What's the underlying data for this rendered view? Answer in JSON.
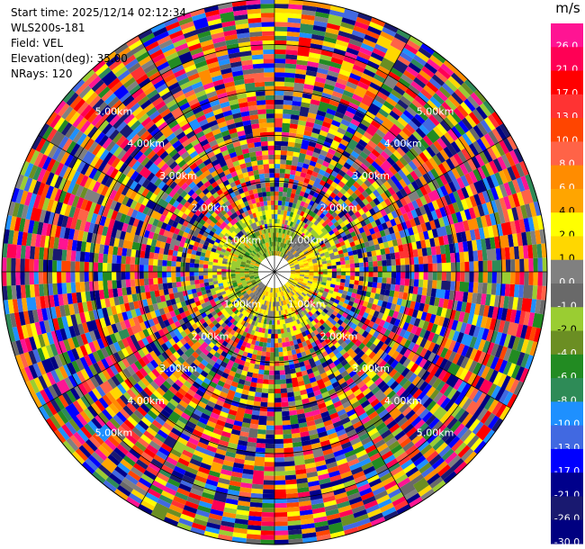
{
  "header": {
    "start_time": "Start time: 2025/12/14 02:12:34",
    "instrument": "WLS200s-181",
    "field": "Field: VEL",
    "elevation": "Elevation(deg): 35.00",
    "nrays": "NRays: 120"
  },
  "colorbar": {
    "unit": "m/s",
    "ticks": [
      "26.0",
      "21.0",
      "17.0",
      "13.0",
      "10.0",
      "8.0",
      "6.0",
      "4.0",
      "2.0",
      "1.0",
      "0.0",
      "-1.0",
      "-2.0",
      "-4.0",
      "-6.0",
      "-8.0",
      "-10.0",
      "-13.0",
      "-17.0",
      "-21.0",
      "-26.0",
      "-30.0"
    ],
    "colors": [
      "#ff1493",
      "#ff0055",
      "#ff0000",
      "#ff3333",
      "#ff4500",
      "#ff6347",
      "#ff8c00",
      "#ffa500",
      "#ffff00",
      "#ffd700",
      "#808080",
      "#696969",
      "#9acd32",
      "#6b8e23",
      "#228b22",
      "#2e8b57",
      "#1e90ff",
      "#4169e1",
      "#0000ff",
      "#00008b",
      "#191970",
      "#000080"
    ]
  },
  "chart_data": {
    "type": "ppi",
    "field": "VEL",
    "units": "m/s",
    "nrays": 120,
    "elevation_deg": 35.0,
    "range_rings": [
      {
        "label": "1.00km",
        "range_km": 1.0
      },
      {
        "label": "2.00km",
        "range_km": 2.0
      },
      {
        "label": "3.00km",
        "range_km": 3.0
      },
      {
        "label": "4.00km",
        "range_km": 4.0
      },
      {
        "label": "5.00km",
        "range_km": 5.0
      }
    ],
    "max_range_km": 6.0,
    "color_scale_min": -30.0,
    "color_scale_max": 30.0
  }
}
